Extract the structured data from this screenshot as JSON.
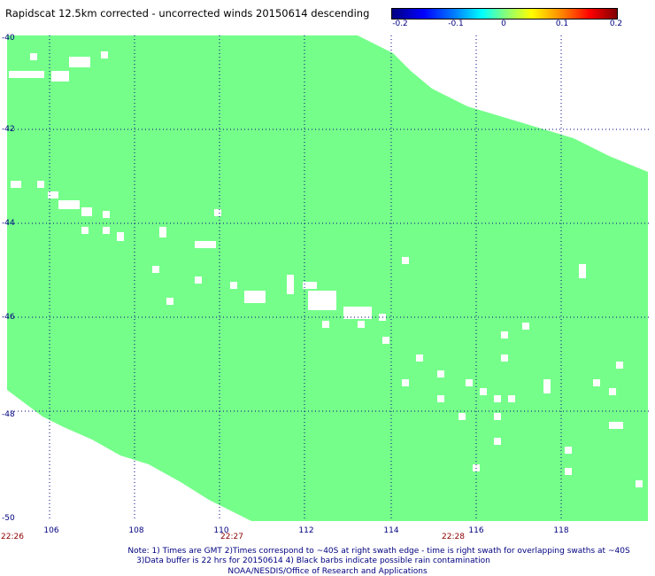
{
  "title": "Rapidscat 12.5km corrected - uncorrected winds 20150614 descending",
  "colorbar": {
    "labels": [
      "-0.2",
      "-0.1",
      "0",
      "0.1",
      "0.2"
    ],
    "colors": [
      "#000080",
      "#0000ff",
      "#00ffff",
      "#80ff80",
      "#ffff00",
      "#ff0000",
      "#800000"
    ]
  },
  "map": {
    "lat_labels": [
      "-40",
      "-42",
      "-44",
      "-46",
      "-48",
      "-50"
    ],
    "lon_labels": [
      "106",
      "108",
      "110",
      "112",
      "114",
      "116",
      "118"
    ],
    "lat_range": [
      -50,
      -40
    ],
    "lon_range": [
      105,
      120
    ],
    "swath_color": "#75ff8a",
    "time_labels": [
      "22:26",
      "22:27",
      "22:28"
    ]
  },
  "notes": {
    "line1": "Note: 1) Times are GMT 2)Times correspond to ~40S at right swath edge - time is right swath for overlapping swaths at ~40S",
    "line2": "3)Data buffer is 22 hrs for 20150614 4) Black barbs indicate possible rain contamination",
    "line3": "NOAA/NESDIS/Office of Research and Applications"
  }
}
